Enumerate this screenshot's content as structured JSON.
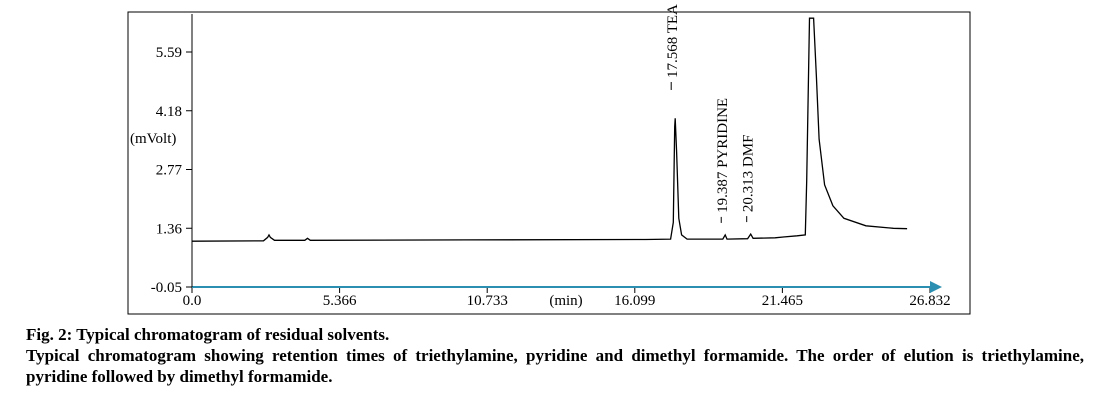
{
  "chart_data": {
    "type": "line",
    "xlabel": "(min)",
    "ylabel": "(mVolt)",
    "xlim": [
      0.0,
      26.832
    ],
    "ylim": [
      -0.05,
      6.4
    ],
    "x_ticks": [
      "0.0",
      "5.366",
      "10.733",
      "16.099",
      "21.465",
      "26.832"
    ],
    "y_ticks": [
      "5.59",
      "4.18",
      "2.77",
      "1.36",
      "-0.05"
    ],
    "series": [
      {
        "points": [
          [
            0.0,
            1.05
          ],
          [
            2.6,
            1.06
          ],
          [
            2.75,
            1.14
          ],
          [
            2.8,
            1.2
          ],
          [
            2.85,
            1.14
          ],
          [
            3.0,
            1.07
          ],
          [
            4.1,
            1.07
          ],
          [
            4.2,
            1.12
          ],
          [
            4.3,
            1.07
          ],
          [
            10.0,
            1.08
          ],
          [
            16.5,
            1.09
          ],
          [
            17.4,
            1.1
          ],
          [
            17.5,
            1.5
          ],
          [
            17.55,
            3.8
          ],
          [
            17.568,
            4.0
          ],
          [
            17.62,
            3.2
          ],
          [
            17.7,
            1.6
          ],
          [
            17.8,
            1.2
          ],
          [
            18.0,
            1.1
          ],
          [
            19.3,
            1.1
          ],
          [
            19.387,
            1.2
          ],
          [
            19.45,
            1.1
          ],
          [
            20.2,
            1.11
          ],
          [
            20.313,
            1.22
          ],
          [
            20.4,
            1.12
          ],
          [
            21.2,
            1.13
          ],
          [
            21.5,
            1.15
          ],
          [
            22.0,
            1.18
          ],
          [
            22.3,
            1.2
          ],
          [
            22.35,
            2.5
          ],
          [
            22.45,
            6.4
          ],
          [
            22.6,
            6.4
          ],
          [
            22.7,
            5.0
          ],
          [
            22.8,
            3.5
          ],
          [
            23.0,
            2.4
          ],
          [
            23.3,
            1.9
          ],
          [
            23.7,
            1.6
          ],
          [
            24.5,
            1.42
          ],
          [
            25.5,
            1.36
          ],
          [
            26.0,
            1.35
          ]
        ]
      }
    ],
    "peaks": [
      {
        "rt": 17.568,
        "label": "17.568 TEA"
      },
      {
        "rt": 19.387,
        "label": "19.387 PYRIDINE"
      },
      {
        "rt": 20.313,
        "label": "20.313 DMF"
      }
    ]
  },
  "caption": {
    "title": "Fig. 2: Typical chromatogram of residual solvents.",
    "body": "Typical chromatogram showing retention times of triethylamine, pyridine and dimethyl formamide. The order of elution is triethylamine, pyridine followed by dimethyl formamide."
  }
}
